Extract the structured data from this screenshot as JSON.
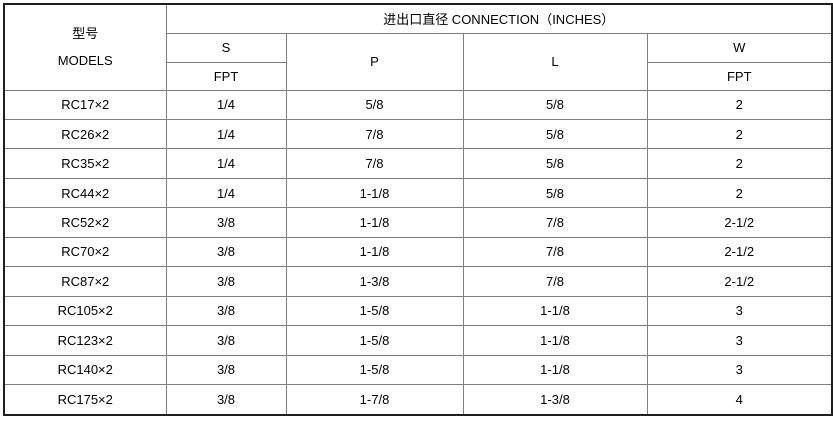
{
  "colors": {
    "outer_border": "#1f1f1f",
    "grid_line": "#808080",
    "text": "#000000",
    "background": "#ffffff"
  },
  "header": {
    "model_zh": "型号",
    "model_en": "MODELS",
    "connection": "进出口直径 CONNECTION（INCHES）",
    "col_s": "S",
    "col_s_sub": "FPT",
    "col_p": "P",
    "col_l": "L",
    "col_w": "W",
    "col_w_sub": "FPT"
  },
  "rows": [
    {
      "model": "RC17×2",
      "s": "1/4",
      "p": "5/8",
      "l": "5/8",
      "w": "2"
    },
    {
      "model": "RC26×2",
      "s": "1/4",
      "p": "7/8",
      "l": "5/8",
      "w": "2"
    },
    {
      "model": "RC35×2",
      "s": "1/4",
      "p": "7/8",
      "l": "5/8",
      "w": "2"
    },
    {
      "model": "RC44×2",
      "s": "1/4",
      "p": "1-1/8",
      "l": "5/8",
      "w": "2"
    },
    {
      "model": "RC52×2",
      "s": "3/8",
      "p": "1-1/8",
      "l": "7/8",
      "w": "2-1/2"
    },
    {
      "model": "RC70×2",
      "s": "3/8",
      "p": "1-1/8",
      "l": "7/8",
      "w": "2-1/2"
    },
    {
      "model": "RC87×2",
      "s": "3/8",
      "p": "1-3/8",
      "l": "7/8",
      "w": "2-1/2"
    },
    {
      "model": "RC105×2",
      "s": "3/8",
      "p": "1-5/8",
      "l": "1-1/8",
      "w": "3"
    },
    {
      "model": "RC123×2",
      "s": "3/8",
      "p": "1-5/8",
      "l": "1-1/8",
      "w": "3"
    },
    {
      "model": "RC140×2",
      "s": "3/8",
      "p": "1-5/8",
      "l": "1-1/8",
      "w": "3"
    },
    {
      "model": "RC175×2",
      "s": "3/8",
      "p": "1-7/8",
      "l": "1-3/8",
      "w": "4"
    }
  ],
  "chart_data": {
    "type": "table",
    "title": "进出口直径 CONNECTION（INCHES）",
    "columns": [
      "型号 MODELS",
      "S (FPT)",
      "P",
      "L",
      "W (FPT)"
    ],
    "rows": [
      [
        "RC17×2",
        "1/4",
        "5/8",
        "5/8",
        "2"
      ],
      [
        "RC26×2",
        "1/4",
        "7/8",
        "5/8",
        "2"
      ],
      [
        "RC35×2",
        "1/4",
        "7/8",
        "5/8",
        "2"
      ],
      [
        "RC44×2",
        "1/4",
        "1-1/8",
        "5/8",
        "2"
      ],
      [
        "RC52×2",
        "3/8",
        "1-1/8",
        "7/8",
        "2-1/2"
      ],
      [
        "RC70×2",
        "3/8",
        "1-1/8",
        "7/8",
        "2-1/2"
      ],
      [
        "RC87×2",
        "3/8",
        "1-3/8",
        "7/8",
        "2-1/2"
      ],
      [
        "RC105×2",
        "3/8",
        "1-5/8",
        "1-1/8",
        "3"
      ],
      [
        "RC123×2",
        "3/8",
        "1-5/8",
        "1-1/8",
        "3"
      ],
      [
        "RC140×2",
        "3/8",
        "1-5/8",
        "1-1/8",
        "3"
      ],
      [
        "RC175×2",
        "3/8",
        "1-7/8",
        "1-3/8",
        "4"
      ]
    ]
  }
}
